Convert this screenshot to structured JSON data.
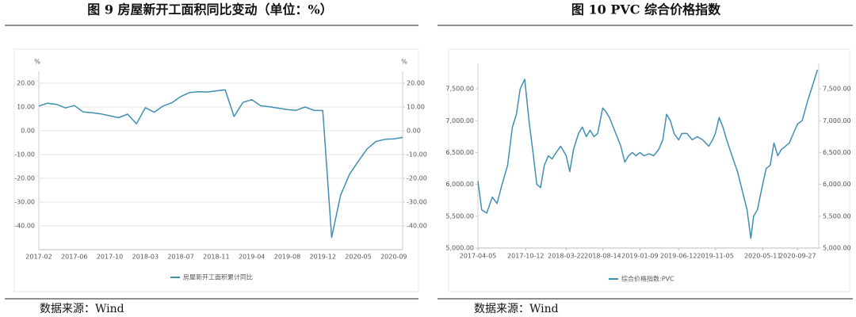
{
  "chart_data": [
    {
      "type": "line",
      "title": "图 9   房屋新开工面积同比变动（单位：%）",
      "source": "数据来源：Wind",
      "y_unit": "%",
      "y2_unit": "%",
      "categories": [
        "2017-02",
        null,
        null,
        null,
        "2017-06",
        null,
        null,
        null,
        "2017-10",
        null,
        null,
        null,
        "2018-03",
        null,
        null,
        null,
        "2018-07",
        null,
        null,
        null,
        "2018-11",
        null,
        null,
        null,
        "2019-04",
        null,
        null,
        null,
        "2019-08",
        null,
        null,
        null,
        "2019-12",
        null,
        null,
        null,
        "2020-05",
        null,
        null,
        null,
        "2020-09",
        null
      ],
      "series": [
        {
          "name": "房屋新开工面积累计同比",
          "color": "#3f8fb3",
          "values": [
            10.4,
            11.6,
            11.1,
            9.6,
            10.6,
            7.9,
            7.6,
            7.1,
            6.3,
            5.5,
            7.0,
            2.9,
            9.7,
            7.8,
            10.4,
            11.8,
            14.4,
            16.1,
            16.4,
            16.3,
            16.8,
            17.2,
            6.0,
            11.9,
            13.1,
            10.5,
            10.1,
            9.5,
            8.9,
            8.6,
            10.0,
            8.6,
            8.5,
            -44.9,
            -27.2,
            -18.4,
            -12.8,
            -7.6,
            -4.5,
            -3.6,
            -3.4,
            -2.8
          ]
        }
      ],
      "ylim": [
        -50,
        25
      ],
      "yticks": [
        {
          "value": -40,
          "label": "-40.00"
        },
        {
          "value": -30,
          "label": "-30.00"
        },
        {
          "value": -20,
          "label": "-20.00"
        },
        {
          "value": -10,
          "label": "-10.00"
        },
        {
          "value": 0,
          "label": "0.00"
        },
        {
          "value": 10,
          "label": "10.00"
        },
        {
          "value": 20,
          "label": "20.00"
        }
      ],
      "y2lim": [
        -50,
        25
      ],
      "y2ticks": [
        {
          "value": -40,
          "label": "-40.00"
        },
        {
          "value": -30,
          "label": "-30.00"
        },
        {
          "value": -20,
          "label": "-20.00"
        },
        {
          "value": -10,
          "label": "-10.00"
        },
        {
          "value": 0,
          "label": "0.00"
        },
        {
          "value": 10,
          "label": "10.00"
        },
        {
          "value": 20,
          "label": "20.00"
        }
      ],
      "grid": true
    },
    {
      "type": "line",
      "title": "图 10   PVC 综合价格指数",
      "source": "数据来源：Wind",
      "x": [
        "2017-04-05",
        "2017-04-20",
        "2017-05-10",
        "2017-06-01",
        "2017-06-20",
        "2017-07-10",
        "2017-08-01",
        "2017-08-20",
        "2017-09-05",
        "2017-09-20",
        "2017-10-08",
        "2017-10-25",
        "2017-11-10",
        "2017-11-25",
        "2017-12-10",
        "2017-12-25",
        "2018-01-10",
        "2018-01-25",
        "2018-02-10",
        "2018-02-28",
        "2018-03-22",
        "2018-04-05",
        "2018-04-20",
        "2018-05-10",
        "2018-05-25",
        "2018-06-10",
        "2018-06-25",
        "2018-07-10",
        "2018-07-25",
        "2018-08-14",
        "2018-08-25",
        "2018-09-10",
        "2018-09-25",
        "2018-10-10",
        "2018-10-25",
        "2018-11-10",
        "2018-11-25",
        "2018-12-10",
        "2018-12-25",
        "2019-01-09",
        "2019-01-25",
        "2019-02-15",
        "2019-03-05",
        "2019-03-25",
        "2019-04-10",
        "2019-04-25",
        "2019-05-10",
        "2019-05-25",
        "2019-06-12",
        "2019-06-25",
        "2019-07-15",
        "2019-08-05",
        "2019-08-25",
        "2019-09-15",
        "2019-10-10",
        "2019-10-25",
        "2019-11-05",
        "2019-11-20",
        "2019-12-05",
        "2019-12-20",
        "2020-01-10",
        "2020-02-01",
        "2020-02-20",
        "2020-03-10",
        "2020-03-25",
        "2020-04-05",
        "2020-04-20",
        "2020-05-11",
        "2020-05-25",
        "2020-06-10",
        "2020-06-25",
        "2020-07-10",
        "2020-07-25",
        "2020-08-10",
        "2020-08-25",
        "2020-09-10",
        "2020-09-27",
        "2020-10-15",
        "2020-11-05",
        "2020-11-25",
        "2020-12-15"
      ],
      "series": [
        {
          "name": "综合价格指数:PVC",
          "color": "#3f8fb3",
          "values": [
            6050,
            5600,
            5550,
            5800,
            5700,
            6000,
            6300,
            6900,
            7100,
            7500,
            7650,
            7000,
            6500,
            6000,
            5950,
            6300,
            6450,
            6400,
            6500,
            6600,
            6450,
            6200,
            6550,
            6800,
            6900,
            6750,
            6850,
            6750,
            6800,
            7200,
            7150,
            7050,
            6900,
            6750,
            6600,
            6350,
            6450,
            6500,
            6450,
            6500,
            6450,
            6480,
            6450,
            6550,
            6700,
            7100,
            7000,
            6800,
            6700,
            6800,
            6800,
            6700,
            6750,
            6700,
            6600,
            6700,
            6800,
            7050,
            6900,
            6700,
            6450,
            6200,
            5900,
            5600,
            5150,
            5500,
            5600,
            6000,
            6250,
            6300,
            6650,
            6450,
            6550,
            6600,
            6650,
            6800,
            6950,
            7000,
            7300,
            7550,
            7800
          ]
        }
      ],
      "xlim": [
        "2017-04-05",
        "2020-12-20"
      ],
      "xticks": [
        "2017-04-05",
        "2017-10-12",
        "2018-03-22",
        "2018-08-14",
        "2019-01-09",
        "2019-06-12",
        "2019-11-05",
        "2020-05-11",
        "2020-09-27"
      ],
      "ylim": [
        5000,
        7900
      ],
      "yticks": [
        {
          "value": 5000,
          "label": "5,000.00"
        },
        {
          "value": 5500,
          "label": "5,500.00"
        },
        {
          "value": 6000,
          "label": "6,000.00"
        },
        {
          "value": 6500,
          "label": "6,500.00"
        },
        {
          "value": 7000,
          "label": "7,000.00"
        },
        {
          "value": 7500,
          "label": "7,500.00"
        }
      ],
      "y2lim": [
        5000,
        7900
      ],
      "y2ticks": [
        {
          "value": 5000,
          "label": "5,000.00"
        },
        {
          "value": 5500,
          "label": "5,500.00"
        },
        {
          "value": 6000,
          "label": "6,000.00"
        },
        {
          "value": 6500,
          "label": "6,500.00"
        },
        {
          "value": 7000,
          "label": "7,000.00"
        },
        {
          "value": 7500,
          "label": "7,500.00"
        }
      ],
      "grid": false
    }
  ]
}
